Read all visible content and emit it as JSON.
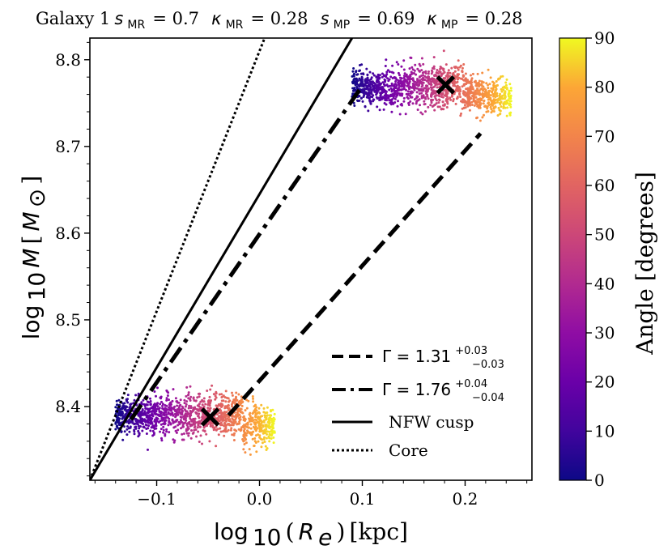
{
  "chart_data": {
    "type": "scatter",
    "title": {
      "galaxy": "Galaxy 1",
      "s_MR_label": "s",
      "s_MR_sub": "MR",
      "s_MR_value": "= 0.7",
      "k_MR_label": "κ",
      "k_MR_sub": "MR",
      "k_MR_value": "= 0.28",
      "s_MP_label": "s",
      "s_MP_sub": "MP",
      "s_MP_value": "= 0.69",
      "k_MP_label": "κ",
      "k_MP_sub": "MP",
      "k_MP_value": "= 0.28"
    },
    "xlabel": {
      "log": "log",
      "sub": "10",
      "paren_open": " (",
      "var": "R",
      "var_sub": "e",
      "paren_close": ")",
      "unit": " [kpc]"
    },
    "ylabel": {
      "log": "log",
      "sub": "10",
      "var": "M",
      "bracket_open": " [",
      "unit": "M",
      "unit_sub": "⊙",
      "bracket_close": "]"
    },
    "xlim": [
      -0.165,
      0.265
    ],
    "ylim": [
      8.315,
      8.825
    ],
    "xticks": [
      -0.1,
      0.0,
      0.1,
      0.2
    ],
    "xtick_labels": [
      "−0.1",
      "0.0",
      "0.1",
      "0.2"
    ],
    "yticks": [
      8.4,
      8.5,
      8.6,
      8.7,
      8.8
    ],
    "ytick_labels": [
      "8.4",
      "8.5",
      "8.6",
      "8.7",
      "8.8"
    ],
    "colorbar": {
      "label": "Angle [degrees]",
      "colormap": "plasma",
      "range": [
        0,
        90
      ],
      "ticks": [
        0,
        10,
        20,
        30,
        40,
        50,
        60,
        70,
        80,
        90
      ],
      "tick_labels": [
        "0",
        "10",
        "20",
        "30",
        "40",
        "50",
        "60",
        "70",
        "80",
        "90"
      ]
    },
    "clusters": [
      {
        "name": "low-mass",
        "x_range": [
          -0.14,
          0.015
        ],
        "y_center": 8.39,
        "y_spread": 0.015,
        "y_slope": 0.12,
        "angle_range": [
          0,
          90
        ]
      },
      {
        "name": "high-mass",
        "x_range": [
          0.09,
          0.245
        ],
        "y_center": 8.77,
        "y_spread": 0.015,
        "y_slope": -0.2,
        "angle_range": [
          0,
          90
        ]
      }
    ],
    "markers": [
      {
        "name": "median-low",
        "symbol": "x",
        "x": -0.048,
        "y": 8.388
      },
      {
        "name": "median-high",
        "symbol": "x",
        "x": 0.181,
        "y": 8.771
      }
    ],
    "series": [
      {
        "name": "dashed-fit",
        "style": "dashed",
        "x": [
          -0.03,
          0.215
        ],
        "y": [
          8.39,
          8.715
        ]
      },
      {
        "name": "dashdot-fit",
        "style": "dashdot",
        "x": [
          -0.125,
          0.1
        ],
        "y": [
          8.385,
          8.77
        ]
      },
      {
        "name": "nfw-cusp",
        "style": "solid",
        "x": [
          -0.165,
          0.09
        ],
        "y": [
          8.315,
          8.825
        ]
      },
      {
        "name": "core",
        "style": "dotted",
        "x": [
          -0.165,
          0.005
        ],
        "y": [
          8.315,
          8.825
        ]
      }
    ],
    "legend": {
      "location": "lower-right",
      "entries": [
        {
          "style": "dashed",
          "gamma_prefix": "Γ = 1.31",
          "sup": "+0.03",
          "sub": "−0.03"
        },
        {
          "style": "dashdot",
          "gamma_prefix": "Γ = 1.76",
          "sup": "+0.04",
          "sub": "−0.04"
        },
        {
          "style": "solid",
          "label": "NFW cusp"
        },
        {
          "style": "dotted",
          "label": "Core"
        }
      ]
    }
  }
}
